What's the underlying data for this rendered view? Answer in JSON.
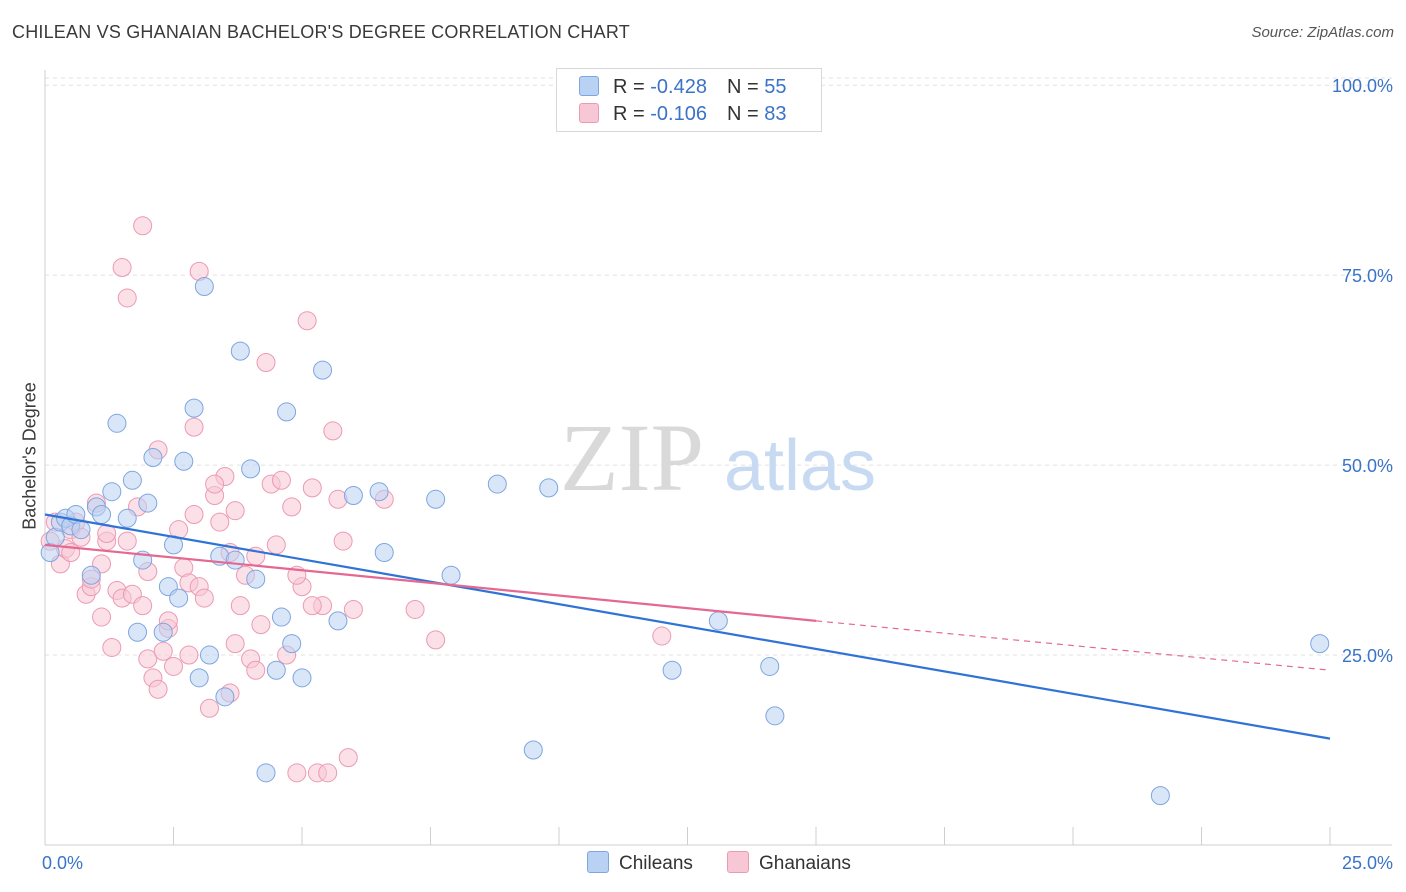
{
  "header": {
    "title": "CHILEAN VS GHANAIAN BACHELOR'S DEGREE CORRELATION CHART",
    "source": "Source: ZipAtlas.com"
  },
  "watermark": {
    "zip": "ZIP",
    "atlas": "atlas"
  },
  "legend_top": {
    "rows": [
      {
        "r_label": "R = ",
        "r_value": "-0.428",
        "n_label": "N = ",
        "n_value": "55"
      },
      {
        "r_label": "R = ",
        "r_value": "-0.106",
        "n_label": "N = ",
        "n_value": "83"
      }
    ]
  },
  "legend_bottom": {
    "items": [
      "Chileans",
      "Ghanaians"
    ]
  },
  "colors": {
    "blue_fill": "#b9d1f3",
    "blue_stroke": "#7ea6e0",
    "blue_line": "#2f73d6",
    "pink_fill": "#f8c7d6",
    "pink_stroke": "#ec9ab4",
    "pink_line": "#e46892",
    "tick_label": "#3a73c7",
    "grid": "#e2e2e2"
  },
  "chart_data": {
    "type": "scatter",
    "title": "CHILEAN VS GHANAIAN BACHELOR'S DEGREE CORRELATION CHART",
    "xlabel": "",
    "ylabel": "Bachelor's Degree",
    "xlim": [
      0,
      25
    ],
    "ylim": [
      0,
      102
    ],
    "x_tick_labels": [
      "0.0%",
      "25.0%"
    ],
    "y_ticks": [
      {
        "value": 100,
        "label": "100.0%"
      },
      {
        "value": 75,
        "label": "75.0%"
      },
      {
        "value": 50,
        "label": "50.0%"
      },
      {
        "value": 25,
        "label": "25.0%"
      }
    ],
    "series": [
      {
        "name": "Chileans",
        "r": -0.428,
        "n": 55,
        "trend": {
          "x0": 0,
          "y0": 43.5,
          "x1": 25,
          "y1": 14.0
        },
        "points": [
          [
            0.1,
            38.5
          ],
          [
            0.2,
            40.5
          ],
          [
            0.3,
            42.5
          ],
          [
            0.4,
            43.0
          ],
          [
            0.5,
            42.0
          ],
          [
            0.6,
            43.5
          ],
          [
            0.7,
            41.5
          ],
          [
            0.9,
            35.5
          ],
          [
            1.0,
            44.5
          ],
          [
            1.1,
            43.5
          ],
          [
            1.3,
            46.5
          ],
          [
            1.4,
            55.5
          ],
          [
            1.6,
            43.0
          ],
          [
            1.7,
            48.0
          ],
          [
            1.8,
            28.0
          ],
          [
            1.9,
            37.5
          ],
          [
            2.0,
            45.0
          ],
          [
            2.1,
            51.0
          ],
          [
            2.3,
            28.0
          ],
          [
            2.4,
            34.0
          ],
          [
            2.5,
            39.5
          ],
          [
            2.6,
            32.5
          ],
          [
            2.7,
            50.5
          ],
          [
            2.9,
            57.5
          ],
          [
            3.0,
            22.0
          ],
          [
            3.1,
            73.5
          ],
          [
            3.2,
            25.0
          ],
          [
            3.4,
            38.0
          ],
          [
            3.5,
            19.5
          ],
          [
            3.7,
            37.5
          ],
          [
            3.8,
            65.0
          ],
          [
            4.0,
            49.5
          ],
          [
            4.1,
            35.0
          ],
          [
            4.3,
            9.5
          ],
          [
            4.5,
            23.0
          ],
          [
            4.6,
            30.0
          ],
          [
            4.7,
            57.0
          ],
          [
            4.8,
            26.5
          ],
          [
            5.0,
            22.0
          ],
          [
            5.4,
            62.5
          ],
          [
            5.7,
            29.5
          ],
          [
            6.0,
            46.0
          ],
          [
            6.5,
            46.5
          ],
          [
            6.6,
            38.5
          ],
          [
            7.6,
            45.5
          ],
          [
            7.9,
            35.5
          ],
          [
            8.8,
            47.5
          ],
          [
            9.5,
            12.5
          ],
          [
            9.8,
            47.0
          ],
          [
            12.2,
            23.0
          ],
          [
            13.1,
            29.5
          ],
          [
            14.1,
            23.5
          ],
          [
            14.2,
            17.0
          ],
          [
            21.7,
            6.5
          ],
          [
            24.8,
            26.5
          ]
        ]
      },
      {
        "name": "Ghanaians",
        "r": -0.106,
        "n": 83,
        "trend": {
          "x0": 0,
          "y0": 39.5,
          "x1": 15,
          "y1": 29.5
        },
        "trend_extension": {
          "x0": 15,
          "y0": 29.5,
          "x1": 25,
          "y1": 23.0
        },
        "points": [
          [
            0.1,
            40.0
          ],
          [
            0.2,
            42.5
          ],
          [
            0.3,
            37.0
          ],
          [
            0.4,
            39.0
          ],
          [
            0.5,
            41.5
          ],
          [
            0.6,
            42.5
          ],
          [
            0.7,
            40.5
          ],
          [
            0.8,
            33.0
          ],
          [
            0.9,
            34.0
          ],
          [
            1.0,
            45.0
          ],
          [
            1.1,
            37.0
          ],
          [
            1.2,
            40.0
          ],
          [
            1.3,
            26.0
          ],
          [
            1.4,
            33.5
          ],
          [
            1.5,
            32.5
          ],
          [
            1.6,
            40.0
          ],
          [
            1.7,
            33.0
          ],
          [
            1.8,
            44.5
          ],
          [
            1.9,
            31.5
          ],
          [
            2.0,
            24.5
          ],
          [
            2.1,
            22.0
          ],
          [
            2.2,
            52.0
          ],
          [
            2.3,
            25.5
          ],
          [
            2.4,
            28.5
          ],
          [
            2.5,
            23.5
          ],
          [
            2.6,
            41.5
          ],
          [
            2.7,
            36.5
          ],
          [
            2.8,
            34.5
          ],
          [
            2.9,
            43.5
          ],
          [
            3.0,
            34.0
          ],
          [
            3.1,
            32.5
          ],
          [
            3.2,
            18.0
          ],
          [
            3.3,
            46.0
          ],
          [
            3.4,
            42.5
          ],
          [
            3.5,
            48.5
          ],
          [
            3.6,
            20.0
          ],
          [
            3.7,
            44.0
          ],
          [
            3.8,
            31.5
          ],
          [
            3.9,
            35.5
          ],
          [
            4.0,
            24.5
          ],
          [
            4.1,
            38.0
          ],
          [
            4.2,
            29.0
          ],
          [
            4.3,
            63.5
          ],
          [
            4.4,
            47.5
          ],
          [
            4.5,
            39.5
          ],
          [
            4.6,
            48.0
          ],
          [
            4.7,
            25.0
          ],
          [
            4.8,
            44.5
          ],
          [
            4.9,
            9.5
          ],
          [
            5.0,
            34.0
          ],
          [
            5.1,
            69.0
          ],
          [
            5.2,
            47.0
          ],
          [
            5.3,
            9.5
          ],
          [
            5.4,
            31.5
          ],
          [
            5.5,
            9.5
          ],
          [
            5.6,
            54.5
          ],
          [
            5.7,
            45.5
          ],
          [
            5.8,
            40.0
          ],
          [
            5.9,
            11.5
          ],
          [
            6.0,
            31.0
          ],
          [
            1.5,
            76.0
          ],
          [
            1.6,
            72.0
          ],
          [
            1.9,
            81.5
          ],
          [
            3.0,
            75.5
          ],
          [
            2.9,
            55.0
          ],
          [
            2.2,
            20.5
          ],
          [
            1.1,
            30.0
          ],
          [
            0.5,
            38.5
          ],
          [
            0.9,
            35.0
          ],
          [
            1.2,
            41.0
          ],
          [
            2.0,
            36.0
          ],
          [
            2.4,
            29.5
          ],
          [
            2.8,
            25.0
          ],
          [
            3.3,
            47.5
          ],
          [
            3.7,
            26.5
          ],
          [
            4.1,
            23.0
          ],
          [
            4.9,
            35.5
          ],
          [
            5.2,
            31.5
          ],
          [
            6.6,
            45.5
          ],
          [
            7.6,
            27.0
          ],
          [
            7.2,
            31.0
          ],
          [
            12.0,
            27.5
          ],
          [
            3.6,
            38.5
          ]
        ]
      }
    ]
  }
}
